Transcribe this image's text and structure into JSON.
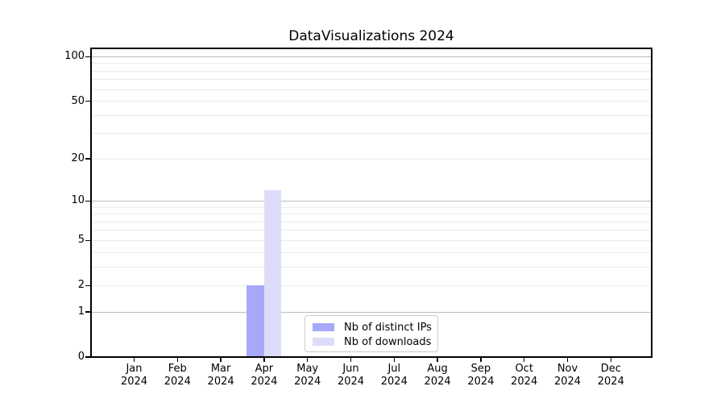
{
  "chart_data": {
    "type": "bar",
    "title": "DataVisualizations 2024",
    "months": [
      {
        "month": "Jan",
        "year": "2024"
      },
      {
        "month": "Feb",
        "year": "2024"
      },
      {
        "month": "Mar",
        "year": "2024"
      },
      {
        "month": "Apr",
        "year": "2024"
      },
      {
        "month": "May",
        "year": "2024"
      },
      {
        "month": "Jun",
        "year": "2024"
      },
      {
        "month": "Jul",
        "year": "2024"
      },
      {
        "month": "Aug",
        "year": "2024"
      },
      {
        "month": "Sep",
        "year": "2024"
      },
      {
        "month": "Oct",
        "year": "2024"
      },
      {
        "month": "Nov",
        "year": "2024"
      },
      {
        "month": "Dec",
        "year": "2024"
      }
    ],
    "series": [
      {
        "name": "Nb of distinct IPs",
        "color": "#a8a8f8",
        "values": [
          0,
          0,
          0,
          2,
          0,
          0,
          0,
          0,
          0,
          0,
          0,
          0
        ]
      },
      {
        "name": "Nb of downloads",
        "color": "#ddddf9",
        "values": [
          0,
          0,
          0,
          12,
          0,
          0,
          0,
          0,
          0,
          0,
          0,
          0
        ]
      }
    ],
    "yscale": "log1p",
    "ylim": [
      0,
      115
    ],
    "yticks": [
      0,
      1,
      2,
      5,
      10,
      20,
      50,
      100
    ],
    "major_gridlines": [
      1,
      10,
      100
    ],
    "minor_gridlines": [
      2,
      3,
      4,
      5,
      6,
      7,
      8,
      9,
      20,
      30,
      40,
      50,
      60,
      70,
      80,
      90
    ],
    "grid": "horizontal",
    "legend_position": "lower-center",
    "colors": {
      "major_grid": "#bdbdbd",
      "minor_grid": "#ebebeb",
      "axis": "#000000",
      "background": "#ffffff"
    }
  }
}
